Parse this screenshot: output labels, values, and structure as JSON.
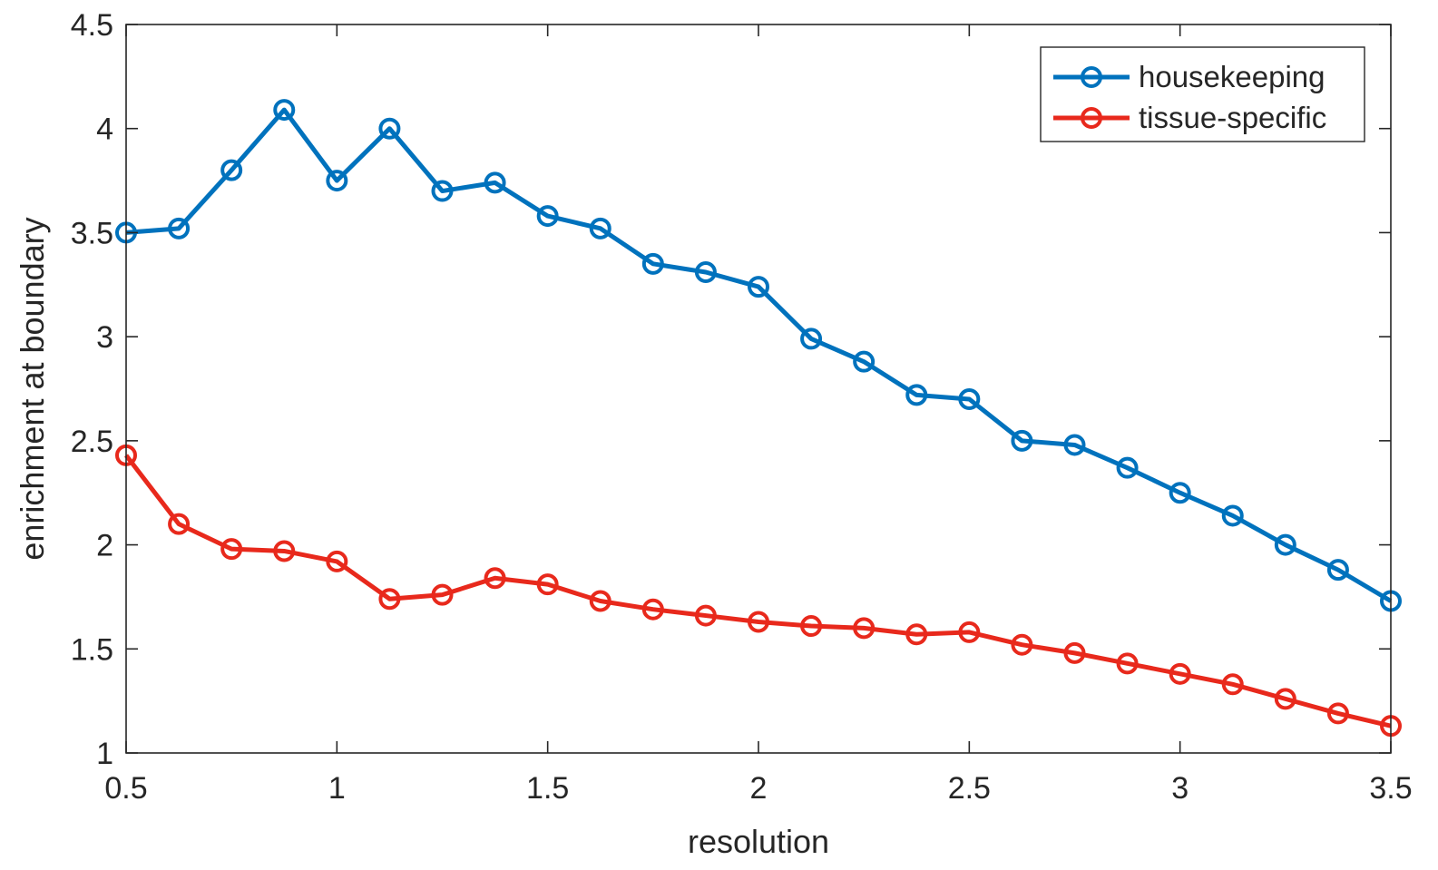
{
  "chart_data": {
    "type": "line",
    "title": "",
    "xlabel": "resolution",
    "ylabel": "enrichment at boundary",
    "xlim": [
      0.5,
      3.5
    ],
    "ylim": [
      1,
      4.5
    ],
    "xticks": [
      0.5,
      1,
      1.5,
      2,
      2.5,
      3,
      3.5
    ],
    "xtick_labels": [
      "0.5",
      "1",
      "1.5",
      "2",
      "2.5",
      "3",
      "3.5"
    ],
    "yticks": [
      1,
      1.5,
      2,
      2.5,
      3,
      3.5,
      4,
      4.5
    ],
    "ytick_labels": [
      "1",
      "1.5",
      "2",
      "2.5",
      "3",
      "3.5",
      "4",
      "4.5"
    ],
    "grid": false,
    "legend_position": "top-right",
    "x": [
      0.5,
      0.625,
      0.75,
      0.875,
      1.0,
      1.125,
      1.25,
      1.375,
      1.5,
      1.625,
      1.75,
      1.875,
      2.0,
      2.125,
      2.25,
      2.375,
      2.5,
      2.625,
      2.75,
      2.875,
      3.0,
      3.125,
      3.25,
      3.375,
      3.5
    ],
    "series": [
      {
        "name": "housekeeping",
        "color": "#0072BD",
        "marker": "circle-open",
        "values": [
          3.5,
          3.52,
          3.8,
          4.09,
          3.75,
          4.0,
          3.7,
          3.74,
          3.58,
          3.52,
          3.35,
          3.31,
          3.24,
          2.99,
          2.88,
          2.72,
          2.7,
          2.5,
          2.48,
          2.37,
          2.25,
          2.14,
          2.0,
          1.88,
          1.73
        ]
      },
      {
        "name": "tissue-specific",
        "color": "#E8291C",
        "marker": "circle-open",
        "values": [
          2.43,
          2.1,
          1.98,
          1.97,
          1.92,
          1.74,
          1.76,
          1.84,
          1.81,
          1.73,
          1.69,
          1.66,
          1.63,
          1.61,
          1.6,
          1.57,
          1.58,
          1.52,
          1.48,
          1.43,
          1.38,
          1.33,
          1.26,
          1.19,
          1.13
        ]
      }
    ]
  }
}
